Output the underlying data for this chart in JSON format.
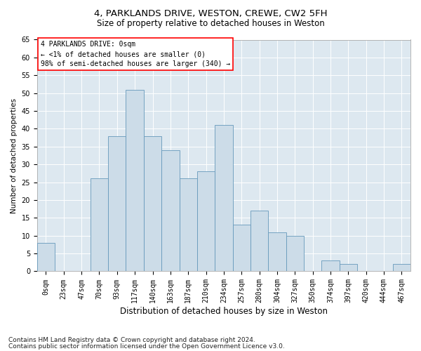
{
  "title1": "4, PARKLANDS DRIVE, WESTON, CREWE, CW2 5FH",
  "title2": "Size of property relative to detached houses in Weston",
  "xlabel": "Distribution of detached houses by size in Weston",
  "ylabel": "Number of detached properties",
  "bar_labels": [
    "0sqm",
    "23sqm",
    "47sqm",
    "70sqm",
    "93sqm",
    "117sqm",
    "140sqm",
    "163sqm",
    "187sqm",
    "210sqm",
    "234sqm",
    "257sqm",
    "280sqm",
    "304sqm",
    "327sqm",
    "350sqm",
    "374sqm",
    "397sqm",
    "420sqm",
    "444sqm",
    "467sqm"
  ],
  "bar_values": [
    8,
    0,
    0,
    26,
    38,
    51,
    38,
    34,
    26,
    28,
    41,
    13,
    17,
    11,
    10,
    0,
    3,
    2,
    0,
    0,
    2
  ],
  "bar_color": "#ccdce8",
  "bar_edge_color": "#6699bb",
  "background_color": "#dde8f0",
  "annotation_text": "4 PARKLANDS DRIVE: 0sqm\n← <1% of detached houses are smaller (0)\n98% of semi-detached houses are larger (340) →",
  "annotation_box_color": "white",
  "annotation_box_edge_color": "red",
  "ylim": [
    0,
    65
  ],
  "yticks": [
    0,
    5,
    10,
    15,
    20,
    25,
    30,
    35,
    40,
    45,
    50,
    55,
    60,
    65
  ],
  "footer1": "Contains HM Land Registry data © Crown copyright and database right 2024.",
  "footer2": "Contains public sector information licensed under the Open Government Licence v3.0.",
  "title1_fontsize": 9.5,
  "title2_fontsize": 8.5,
  "xlabel_fontsize": 8.5,
  "ylabel_fontsize": 7.5,
  "tick_fontsize": 7,
  "annotation_fontsize": 7,
  "footer_fontsize": 6.5
}
